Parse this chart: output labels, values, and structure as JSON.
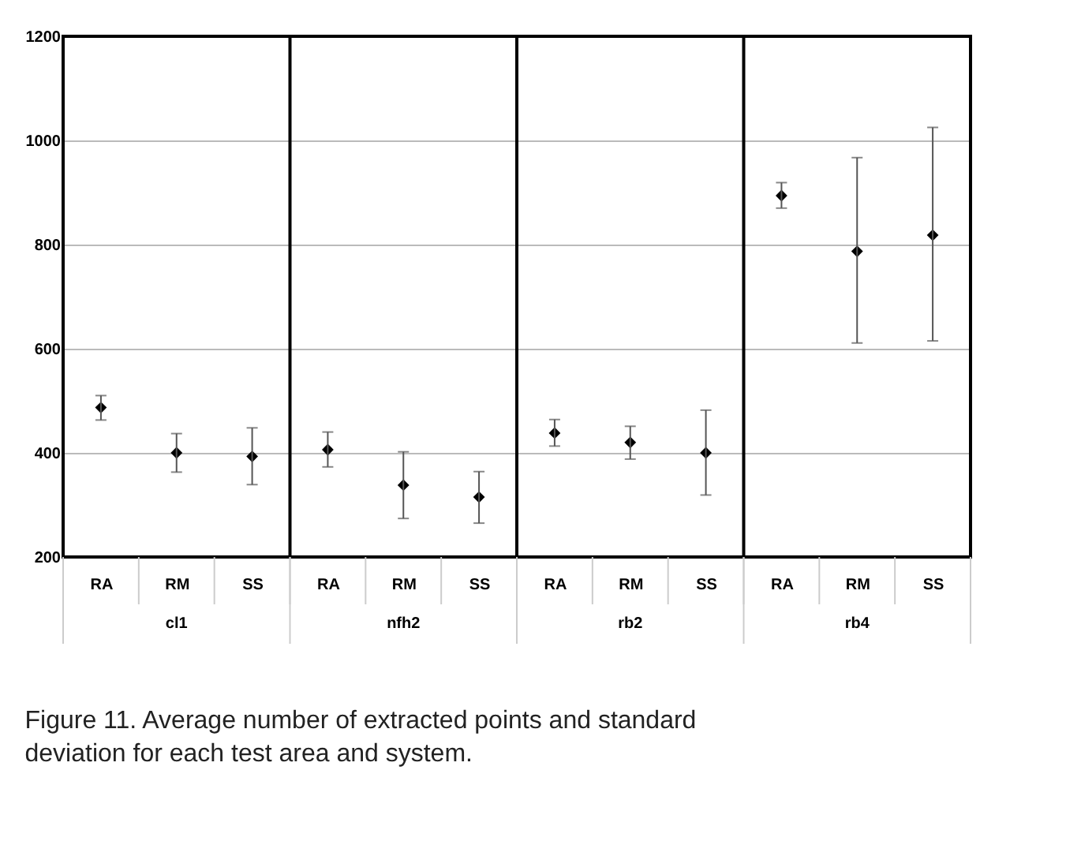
{
  "chart_data": {
    "type": "scatter",
    "categories": [
      "RA",
      "RM",
      "SS",
      "RA",
      "RM",
      "SS",
      "RA",
      "RM",
      "SS",
      "RA",
      "RM",
      "SS"
    ],
    "values": [
      487,
      400,
      393,
      406,
      338,
      315,
      438,
      420,
      400,
      894,
      787,
      818
    ],
    "errors": [
      [
        463,
        510
      ],
      [
        363,
        437
      ],
      [
        339,
        448
      ],
      [
        373,
        440
      ],
      [
        274,
        402
      ],
      [
        265,
        364
      ],
      [
        413,
        464
      ],
      [
        388,
        451
      ],
      [
        319,
        482
      ],
      [
        870,
        919
      ],
      [
        611,
        967
      ],
      [
        615,
        1025
      ]
    ],
    "color": "#000000",
    "marker": "diamond",
    "ylim": [
      200,
      1200
    ],
    "yticks": [
      200,
      400,
      600,
      800,
      1000,
      1200
    ],
    "grid": "y",
    "annotations": [
      "Figure 11. Average number of extracted points and standard deviation for each test area and system.",
      "cl1",
      "nfh2",
      "rb2",
      "rb4"
    ]
  }
}
